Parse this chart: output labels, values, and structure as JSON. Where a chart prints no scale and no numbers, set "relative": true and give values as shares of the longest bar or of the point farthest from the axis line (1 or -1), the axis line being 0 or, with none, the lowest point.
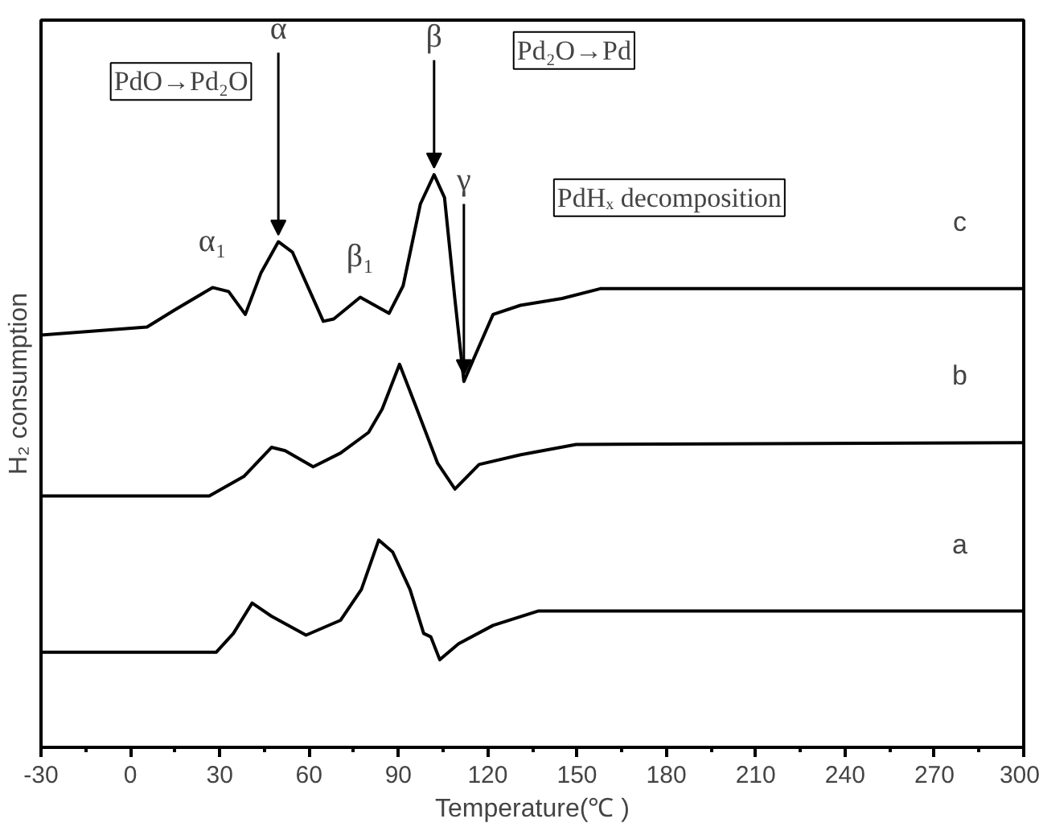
{
  "chart_data": {
    "type": "line",
    "relative": true,
    "xlabel": "Temperature(℃ )",
    "ylabel": "H₂ consumption",
    "xlim": [
      -30,
      300
    ],
    "xticks": [
      -30,
      0,
      30,
      60,
      90,
      120,
      150,
      180,
      210,
      240,
      270,
      300
    ],
    "series": [
      {
        "name": "c",
        "color": "#000000",
        "x": [
          -30,
          5.6,
          14.9,
          27.6,
          33,
          38.6,
          43.9,
          49.7,
          54.4,
          64.8,
          68.3,
          77.2,
          86.9,
          91.6,
          97.4,
          102,
          105.5,
          109,
          112,
          116,
          121.8,
          131,
          145,
          157.8,
          300
        ],
        "values": [
          0.72,
          0.734,
          0.764,
          0.803,
          0.796,
          0.756,
          0.829,
          0.883,
          0.865,
          0.744,
          0.748,
          0.786,
          0.758,
          0.806,
          0.949,
          1.0,
          0.96,
          0.782,
          0.639,
          0.687,
          0.756,
          0.772,
          0.784,
          0.801,
          0.801
        ]
      },
      {
        "name": "b",
        "color": "#000000",
        "x": [
          -30,
          26.5,
          38.1,
          47.4,
          52,
          61.4,
          70.6,
          80,
          84.6,
          90.4,
          96.2,
          103.2,
          109,
          117.1,
          131.1,
          149.7,
          300
        ],
        "values": [
          0.439,
          0.439,
          0.473,
          0.524,
          0.518,
          0.49,
          0.514,
          0.55,
          0.591,
          0.669,
          0.591,
          0.496,
          0.451,
          0.494,
          0.511,
          0.529,
          0.532
        ]
      },
      {
        "name": "a",
        "color": "#000000",
        "x": [
          -30,
          28.8,
          34.6,
          40.9,
          47.4,
          59,
          70.6,
          77.6,
          83.4,
          88.1,
          93.9,
          98.5,
          100.9,
          103.9,
          110.2,
          121.8,
          136.9,
          300
        ],
        "values": [
          0.166,
          0.166,
          0.199,
          0.252,
          0.229,
          0.196,
          0.222,
          0.276,
          0.362,
          0.341,
          0.276,
          0.199,
          0.193,
          0.153,
          0.181,
          0.213,
          0.238,
          0.238
        ]
      }
    ],
    "annotations": [
      {
        "text": "α₁",
        "x": 27.6,
        "y": 0.803
      },
      {
        "text": "α",
        "x": 49.7,
        "y": 0.883
      },
      {
        "text": "β₁",
        "x": 77.2,
        "y": 0.786
      },
      {
        "text": "β",
        "x": 102,
        "y": 1.0
      },
      {
        "text": "γ",
        "x": 112,
        "y": 0.639
      },
      "PdO→Pd₂O",
      "Pd₂O→Pd",
      "PdHₓ decomposition"
    ]
  }
}
